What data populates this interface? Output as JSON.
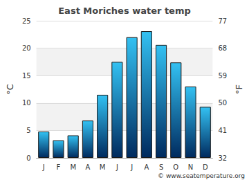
{
  "chart_data": {
    "type": "bar",
    "title": "East Moriches water temp",
    "categories": [
      "J",
      "F",
      "M",
      "A",
      "M",
      "J",
      "J",
      "A",
      "S",
      "O",
      "N",
      "D"
    ],
    "values": [
      4.8,
      3.2,
      4.1,
      6.8,
      11.5,
      17.5,
      22.0,
      23.1,
      20.6,
      17.4,
      13.0,
      9.3
    ],
    "color": "#33c1f2",
    "y_label": "°C",
    "y2_label": "°F",
    "ylim": [
      0,
      25
    ],
    "yticks": [
      0,
      5,
      10,
      15,
      20,
      25
    ],
    "y2lim": [
      32,
      77
    ],
    "y2ticks": [
      32,
      41,
      50,
      59,
      68,
      77
    ],
    "grid": true,
    "annotations": [
      "© www.seatemperature.org"
    ]
  }
}
